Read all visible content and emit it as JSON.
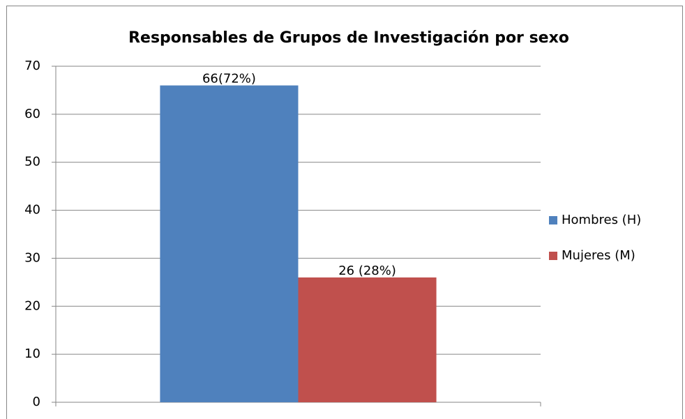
{
  "chart_data": {
    "type": "bar",
    "title": "Responsables de Grupos de Investigación por sexo",
    "categories": [
      null
    ],
    "series": [
      {
        "name": "Hombres (H)",
        "color": "#4f81bd",
        "values": [
          66
        ],
        "value_labels": [
          "66(72%)"
        ]
      },
      {
        "name": "Mujeres (M)",
        "color": "#c0504d",
        "values": [
          26
        ],
        "value_labels": [
          "26 (28%)"
        ]
      }
    ],
    "ylim": [
      0,
      70
    ],
    "yticks": [
      0,
      10,
      20,
      30,
      40,
      50,
      60,
      70
    ],
    "grid": true,
    "legend": "right"
  }
}
